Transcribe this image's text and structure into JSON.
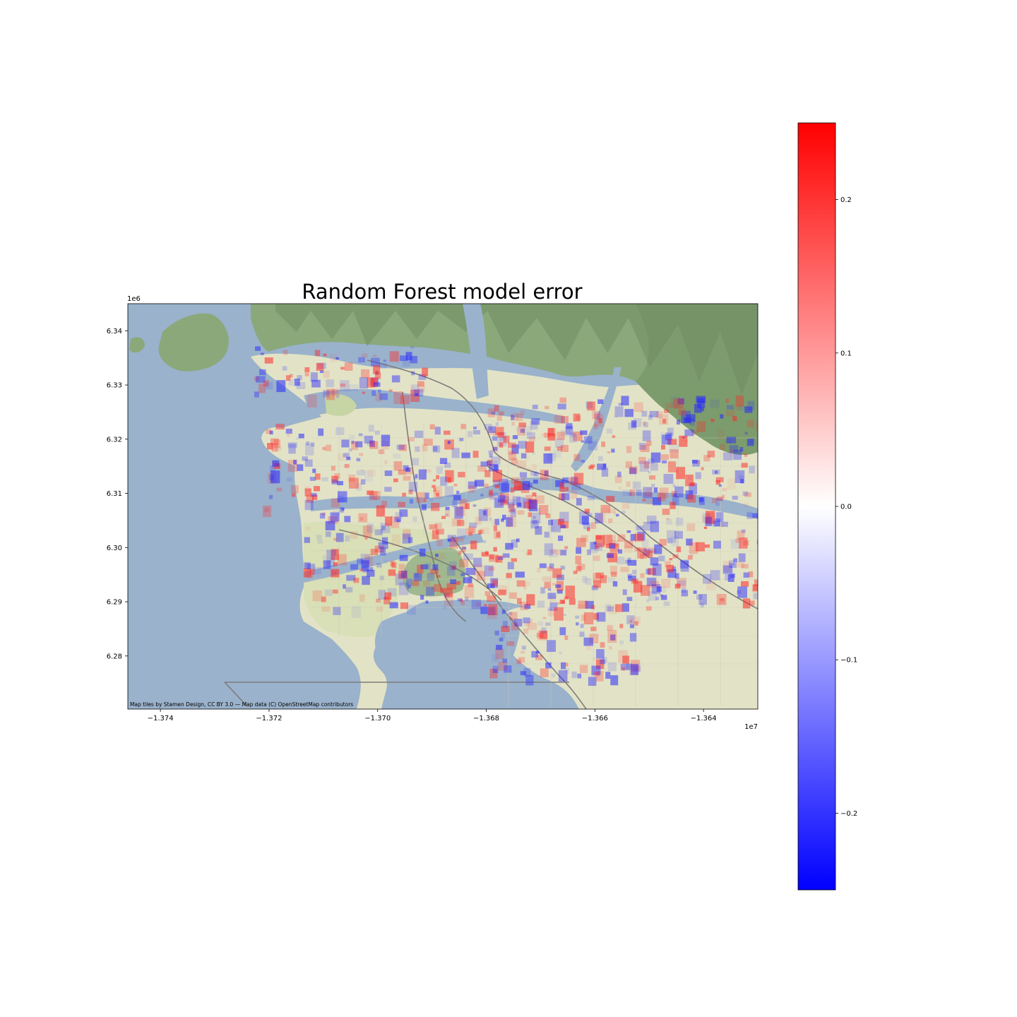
{
  "chart_data": {
    "type": "heatmap",
    "title": "Random Forest model error",
    "x_axis": {
      "offset_label": "1e7",
      "ticks": [
        -1.374,
        -1.372,
        -1.37,
        -1.368,
        -1.366,
        -1.364
      ],
      "tick_labels": [
        "−1.374",
        "−1.372",
        "−1.370",
        "−1.368",
        "−1.366",
        "−1.364"
      ],
      "xlim": [
        -1.3746,
        -1.363
      ]
    },
    "y_axis": {
      "offset_label": "1e6",
      "ticks": [
        6.28,
        6.29,
        6.3,
        6.31,
        6.32,
        6.33,
        6.34
      ],
      "tick_labels": [
        "6.28",
        "6.29",
        "6.30",
        "6.31",
        "6.32",
        "6.33",
        "6.34"
      ],
      "ylim": [
        6.2702,
        6.345
      ]
    },
    "colorbar": {
      "colormap": "bwr",
      "vmin": -0.25,
      "vmax": 0.25,
      "ticks": [
        -0.2,
        -0.1,
        0.0,
        0.1,
        0.2
      ],
      "tick_labels": [
        "−0.2",
        "−0.1",
        "0.0",
        "0.1",
        "0.2"
      ],
      "colors": {
        "low": "#0000ff",
        "mid": "#ffffff",
        "high": "#ff0000"
      }
    },
    "basemap": {
      "attribution": "Map tiles by Stamen Design, CC BY 3.0 — Map data (C) OpenStreetMap contributors",
      "colors": {
        "water": "#9ab2cb",
        "land": "#e2e3c6",
        "park": "#c7d4a4",
        "mountain": "#8aa87a",
        "mountain_dark": "#6f8d63",
        "road": "#7c7c7c"
      }
    },
    "grid": false,
    "legend": "colorbar-right"
  }
}
